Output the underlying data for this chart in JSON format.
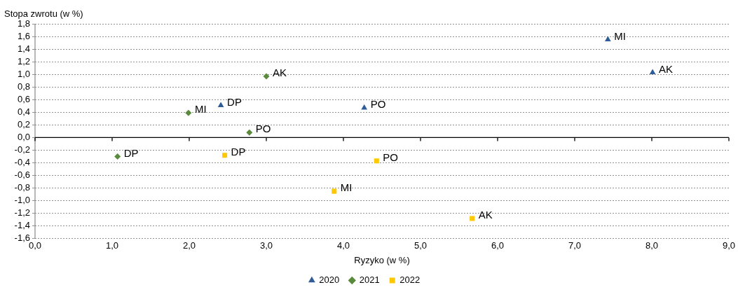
{
  "chart_data": {
    "type": "scatter",
    "xlabel": "Ryzyko (w %)",
    "ylabel": "Stopa zwrotu (w %)",
    "xlim": [
      0,
      9
    ],
    "xticks": [
      {
        "value": 0,
        "label": "0,0"
      },
      {
        "value": 1,
        "label": "1,0"
      },
      {
        "value": 2,
        "label": "2,0"
      },
      {
        "value": 3,
        "label": "3,0"
      },
      {
        "value": 4,
        "label": "4,0"
      },
      {
        "value": 5,
        "label": "5,0"
      },
      {
        "value": 6,
        "label": "6,0"
      },
      {
        "value": 7,
        "label": "7,0"
      },
      {
        "value": 8,
        "label": "8,0"
      },
      {
        "value": 9,
        "label": "9,0"
      }
    ],
    "ylim": [
      -1.6,
      1.8
    ],
    "yticks": [
      {
        "value": -1.6,
        "label": "-1,6"
      },
      {
        "value": -1.4,
        "label": "-1,4"
      },
      {
        "value": -1.2,
        "label": "-1,2"
      },
      {
        "value": -1,
        "label": "-1,0"
      },
      {
        "value": -0.8,
        "label": "-0,8"
      },
      {
        "value": -0.6,
        "label": "-0,6"
      },
      {
        "value": -0.4,
        "label": "-0,4"
      },
      {
        "value": -0.2,
        "label": "-0,2"
      },
      {
        "value": 0,
        "label": "0,0"
      },
      {
        "value": 0.2,
        "label": "0,2"
      },
      {
        "value": 0.4,
        "label": "0,4"
      },
      {
        "value": 0.6,
        "label": "0,6"
      },
      {
        "value": 0.8,
        "label": "0,8"
      },
      {
        "value": 1,
        "label": "1,0"
      },
      {
        "value": 1.2,
        "label": "1,2"
      },
      {
        "value": 1.4,
        "label": "1,4"
      },
      {
        "value": 1.6,
        "label": "1,6"
      },
      {
        "value": 1.8,
        "label": "1,8"
      }
    ],
    "grid": "y",
    "legend": "bottom",
    "series": [
      {
        "name": "2020",
        "color": "#2f5b96",
        "marker": "triangle",
        "x": [
          2.41,
          4.27,
          7.43,
          8.01
        ],
        "values": [
          0.51,
          0.47,
          1.55,
          1.03
        ]
      },
      {
        "name": "2021",
        "color": "#5a8a3c",
        "marker": "diamond",
        "x": [
          1.99,
          3.0,
          2.78,
          1.07
        ],
        "values": [
          0.39,
          0.97,
          0.08,
          -0.3
        ]
      },
      {
        "name": "2022",
        "color": "#ffc800",
        "marker": "square",
        "x": [
          2.46,
          3.88,
          4.43,
          5.67
        ],
        "values": [
          -0.28,
          -0.85,
          -0.37,
          -1.28
        ]
      }
    ],
    "annotations": [
      {
        "text": "DP",
        "x": 2.41,
        "y": 0.51
      },
      {
        "text": "PO",
        "x": 4.27,
        "y": 0.47
      },
      {
        "text": "MI",
        "x": 7.43,
        "y": 1.55
      },
      {
        "text": "AK",
        "x": 8.01,
        "y": 1.03
      },
      {
        "text": "MI",
        "x": 1.99,
        "y": 0.39
      },
      {
        "text": "AK",
        "x": 3.0,
        "y": 0.97
      },
      {
        "text": "PO",
        "x": 2.78,
        "y": 0.08
      },
      {
        "text": "DP",
        "x": 1.07,
        "y": -0.3
      },
      {
        "text": "DP",
        "x": 2.46,
        "y": -0.28
      },
      {
        "text": "MI",
        "x": 3.88,
        "y": -0.85
      },
      {
        "text": "PO",
        "x": 4.43,
        "y": -0.37
      },
      {
        "text": "AK",
        "x": 5.67,
        "y": -1.28
      }
    ]
  }
}
